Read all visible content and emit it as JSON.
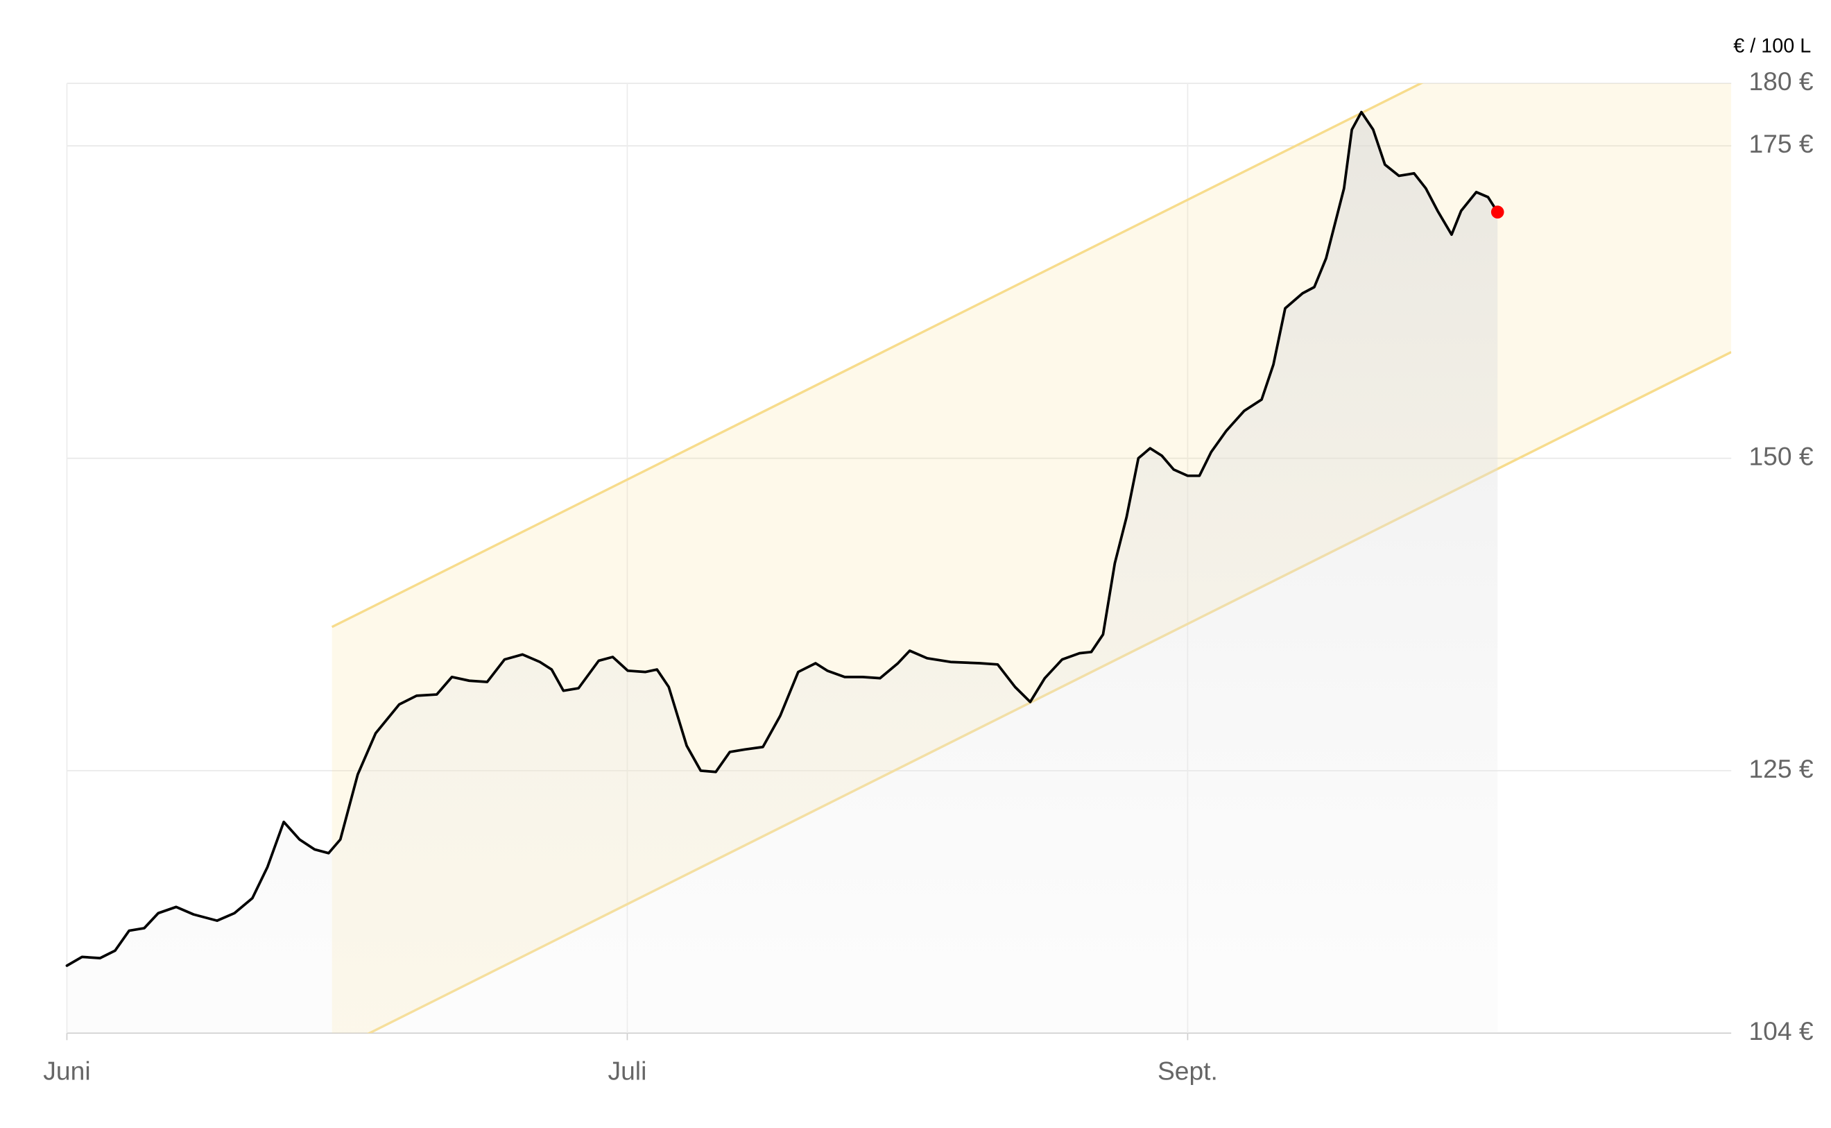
{
  "chart_data": {
    "type": "line",
    "unit_label": "€ / 100 L",
    "xlim": [
      0,
      2.97
    ],
    "xticks": [
      {
        "value": 0,
        "label": "Juni"
      },
      {
        "value": 1,
        "label": "Juli"
      },
      {
        "value": 2,
        "label": "Sept."
      }
    ],
    "ylim": [
      104,
      180
    ],
    "yticks": [
      {
        "value": 104,
        "label": "104 €"
      },
      {
        "value": 125,
        "label": "125 €"
      },
      {
        "value": 150,
        "label": "150 €"
      },
      {
        "value": 175,
        "label": "175 €"
      },
      {
        "value": 180,
        "label": "180 €"
      }
    ],
    "grid": true,
    "band": {
      "color": "#f7dc8c",
      "x": [
        0.473,
        2.97
      ],
      "upper": [
        136.5,
        192.4
      ],
      "lower": [
        102.5,
        158.5
      ]
    },
    "series": [
      {
        "color": "#000000",
        "marker_color": "#ff0000",
        "x": [
          0,
          0.027,
          0.059,
          0.086,
          0.111,
          0.138,
          0.163,
          0.195,
          0.226,
          0.268,
          0.299,
          0.331,
          0.358,
          0.387,
          0.415,
          0.442,
          0.467,
          0.488,
          0.519,
          0.551,
          0.593,
          0.624,
          0.66,
          0.687,
          0.718,
          0.75,
          0.781,
          0.813,
          0.844,
          0.865,
          0.886,
          0.913,
          0.949,
          0.974,
          1.001,
          1.032,
          1.053,
          1.074,
          1.106,
          1.131,
          1.158,
          1.183,
          1.21,
          1.242,
          1.273,
          1.305,
          1.336,
          1.357,
          1.388,
          1.42,
          1.451,
          1.483,
          1.504,
          1.535,
          1.577,
          1.629,
          1.661,
          1.692,
          1.719,
          1.745,
          1.776,
          1.807,
          1.828,
          1.849,
          1.87,
          1.891,
          1.912,
          1.933,
          1.954,
          1.975,
          2.0,
          2.021,
          2.042,
          2.069,
          2.101,
          2.132,
          2.153,
          2.174,
          2.205,
          2.226,
          2.247,
          2.279,
          2.293,
          2.31,
          2.331,
          2.352,
          2.377,
          2.404,
          2.425,
          2.446,
          2.471,
          2.488,
          2.515,
          2.536,
          2.553
        ],
        "values": [
          109.4,
          110.1,
          110.0,
          110.6,
          112.2,
          112.4,
          113.6,
          114.1,
          113.5,
          113.0,
          113.6,
          114.8,
          117.3,
          120.9,
          119.5,
          118.7,
          118.4,
          119.5,
          124.7,
          128.0,
          130.3,
          131.0,
          131.1,
          132.5,
          132.2,
          132.1,
          133.9,
          134.3,
          133.7,
          133.1,
          131.4,
          131.6,
          133.8,
          134.1,
          133.0,
          132.9,
          133.1,
          131.7,
          127.0,
          125.0,
          124.9,
          126.5,
          126.7,
          126.9,
          129.4,
          132.9,
          133.6,
          133.0,
          132.5,
          132.5,
          132.4,
          133.6,
          134.6,
          134.0,
          133.7,
          133.6,
          133.5,
          131.7,
          130.5,
          132.4,
          133.9,
          134.4,
          134.5,
          135.9,
          141.6,
          145.3,
          150.0,
          150.8,
          150.2,
          149.1,
          148.6,
          148.6,
          150.5,
          152.2,
          153.8,
          154.7,
          157.5,
          162.0,
          163.2,
          163.7,
          166.0,
          171.6,
          176.3,
          177.7,
          176.3,
          173.5,
          172.6,
          172.8,
          171.6,
          169.8,
          167.9,
          169.8,
          171.3,
          170.9,
          169.7
        ]
      }
    ]
  }
}
